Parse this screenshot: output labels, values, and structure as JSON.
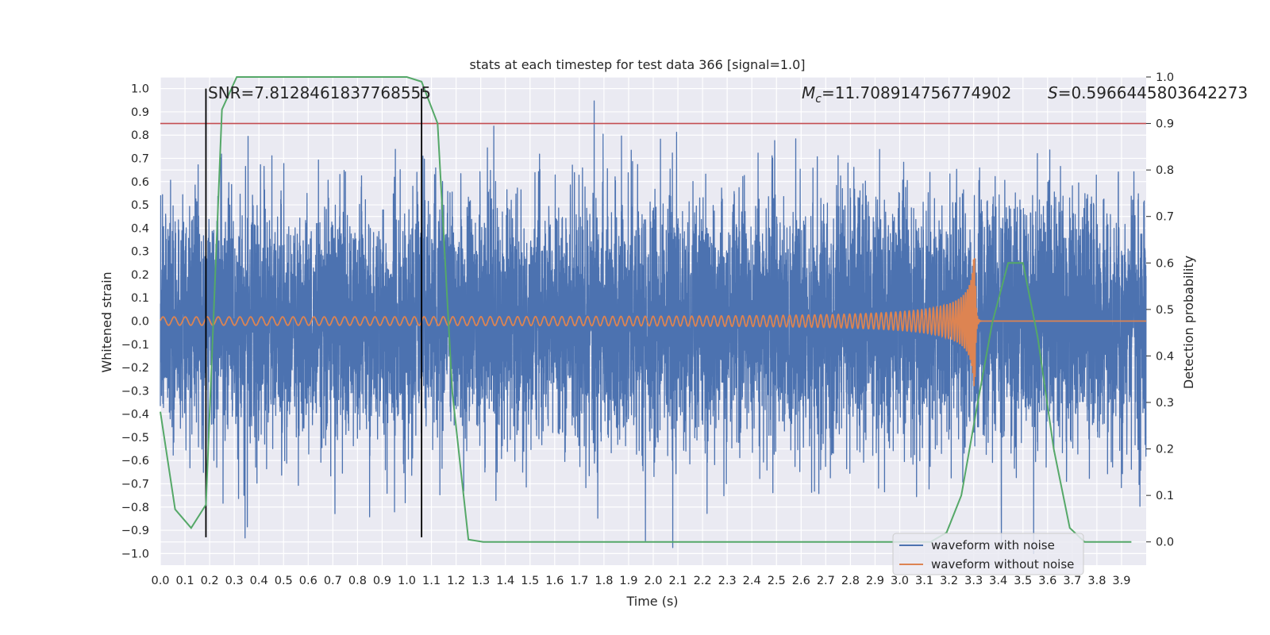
{
  "chart_data": {
    "type": "line",
    "title": "stats at each timestep for test data 366 [signal=1.0]",
    "xlabel": "Time (s)",
    "ylabel": "Whitened strain",
    "y2label": "Detection probability",
    "xlim": [
      0.0,
      4.0
    ],
    "ylim": [
      -1.05,
      1.05
    ],
    "y2lim": [
      -0.05,
      1.0
    ],
    "x_ticks": [
      "0.0",
      "0.1",
      "0.2",
      "0.3",
      "0.4",
      "0.5",
      "0.6",
      "0.7",
      "0.8",
      "0.9",
      "1.0",
      "1.1",
      "1.2",
      "1.3",
      "1.4",
      "1.5",
      "1.6",
      "1.7",
      "1.8",
      "1.9",
      "2.0",
      "2.1",
      "2.2",
      "2.3",
      "2.4",
      "2.5",
      "2.6",
      "2.7",
      "2.8",
      "2.9",
      "3.0",
      "3.1",
      "3.2",
      "3.3",
      "3.4",
      "3.5",
      "3.6",
      "3.7",
      "3.8",
      "3.9"
    ],
    "y_ticks": [
      "1.0",
      "0.9",
      "0.8",
      "0.7",
      "0.6",
      "0.5",
      "0.4",
      "0.3",
      "0.2",
      "0.1",
      "0.0",
      "−0.1",
      "−0.2",
      "−0.3",
      "−0.4",
      "−0.5",
      "−0.6",
      "−0.7",
      "−0.8",
      "−0.9",
      "−1.0"
    ],
    "y2_ticks": [
      "1.0",
      "0.9",
      "0.8",
      "0.7",
      "0.6",
      "0.5",
      "0.4",
      "0.3",
      "0.2",
      "0.1",
      "0.0"
    ],
    "grid": true,
    "legend_position": "bottom-right",
    "annotations": {
      "snr": "SNR=7.8128461837768555",
      "mc_symbol": "M",
      "mc_sub": "c",
      "mc_value": "=11.708914756774902",
      "s_symbol": "S",
      "s_value": "=0.5966445803642273"
    },
    "vertical_lines_x": [
      0.185,
      1.06
    ],
    "threshold_y2": 0.9,
    "series": [
      {
        "name": "waveform with noise",
        "color": "#4c72b0",
        "axis": "left",
        "kind": "noise",
        "sample_rate_hz": 2048,
        "max_abs_value": 1.0
      },
      {
        "name": "waveform without noise",
        "color": "#dd8452",
        "axis": "left",
        "kind": "chirp",
        "merger_time": 3.305,
        "start_amplitude": 0.018,
        "peak_amplitude": 0.29,
        "start_frequency_hz": 22,
        "end_frequency_hz": 260
      },
      {
        "color": "#55a868",
        "axis": "right",
        "x": [
          0.0,
          0.06,
          0.125,
          0.185,
          0.25,
          0.31,
          0.375,
          1.0,
          1.06,
          1.125,
          1.185,
          1.25,
          1.31,
          3.125,
          3.19,
          3.25,
          3.31,
          3.375,
          3.44,
          3.5,
          3.56,
          3.625,
          3.69,
          3.75,
          3.81,
          3.875,
          3.94
        ],
        "y": [
          0.28,
          0.07,
          0.03,
          0.08,
          0.93,
          1.0,
          1.0,
          1.0,
          0.99,
          0.9,
          0.32,
          0.005,
          0.0,
          0.0,
          0.02,
          0.1,
          0.28,
          0.47,
          0.6,
          0.6,
          0.44,
          0.2,
          0.03,
          0.0,
          0.0,
          0.0,
          0.0
        ]
      }
    ],
    "threshold_color": "#c44e52",
    "vline_color": "#000000"
  }
}
